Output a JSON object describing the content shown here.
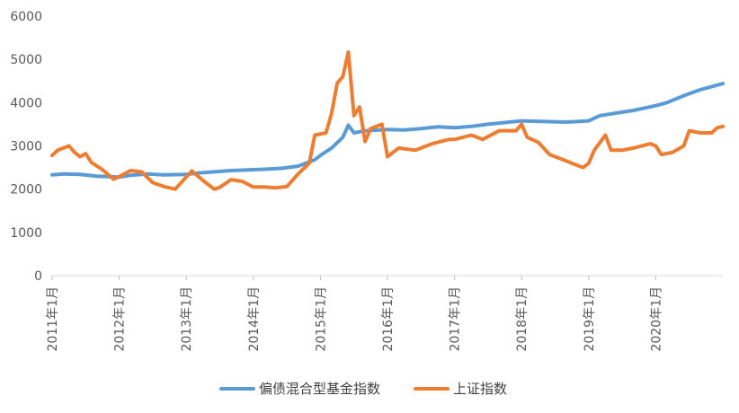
{
  "chart_data": {
    "type": "line",
    "title": "",
    "xlabel": "",
    "ylabel": "",
    "ylim": [
      0,
      6000
    ],
    "y_ticks": [
      "0",
      "1000",
      "2000",
      "3000",
      "4000",
      "5000",
      "6000"
    ],
    "x_tick_labels": [
      "2011年1月",
      "2012年1月",
      "2013年1月",
      "2014年1月",
      "2015年1月",
      "2016年1月",
      "2017年1月",
      "2018年1月",
      "2019年1月",
      "2020年1月"
    ],
    "x_domain": [
      "2011-01",
      "2021-01"
    ],
    "grid": false,
    "legend": "bottom",
    "series": [
      {
        "name": "偏债混合型基金指数",
        "color": "#5b9bd5",
        "points": [
          [
            "2011-01",
            2330
          ],
          [
            "2011-03",
            2350
          ],
          [
            "2011-06",
            2340
          ],
          [
            "2011-09",
            2300
          ],
          [
            "2012-01",
            2280
          ],
          [
            "2012-03",
            2320
          ],
          [
            "2012-06",
            2350
          ],
          [
            "2012-09",
            2330
          ],
          [
            "2013-01",
            2340
          ],
          [
            "2013-03",
            2370
          ],
          [
            "2013-06",
            2400
          ],
          [
            "2013-09",
            2430
          ],
          [
            "2014-01",
            2450
          ],
          [
            "2014-03",
            2460
          ],
          [
            "2014-06",
            2480
          ],
          [
            "2014-09",
            2530
          ],
          [
            "2014-12",
            2680
          ],
          [
            "2015-01",
            2780
          ],
          [
            "2015-03",
            2950
          ],
          [
            "2015-05",
            3200
          ],
          [
            "2015-06",
            3480
          ],
          [
            "2015-07",
            3300
          ],
          [
            "2015-09",
            3350
          ],
          [
            "2016-01",
            3380
          ],
          [
            "2016-04",
            3370
          ],
          [
            "2016-07",
            3400
          ],
          [
            "2016-10",
            3440
          ],
          [
            "2017-01",
            3420
          ],
          [
            "2017-04",
            3450
          ],
          [
            "2017-07",
            3500
          ],
          [
            "2017-10",
            3540
          ],
          [
            "2018-01",
            3580
          ],
          [
            "2018-03",
            3570
          ],
          [
            "2018-06",
            3560
          ],
          [
            "2018-09",
            3550
          ],
          [
            "2019-01",
            3580
          ],
          [
            "2019-03",
            3700
          ],
          [
            "2019-06",
            3760
          ],
          [
            "2019-09",
            3820
          ],
          [
            "2020-01",
            3930
          ],
          [
            "2020-03",
            4000
          ],
          [
            "2020-06",
            4160
          ],
          [
            "2020-09",
            4300
          ],
          [
            "2021-01",
            4440
          ]
        ]
      },
      {
        "name": "上证指数",
        "color": "#ed7d31",
        "points": [
          [
            "2011-01",
            2780
          ],
          [
            "2011-02",
            2900
          ],
          [
            "2011-04",
            3000
          ],
          [
            "2011-05",
            2850
          ],
          [
            "2011-06",
            2750
          ],
          [
            "2011-07",
            2820
          ],
          [
            "2011-08",
            2620
          ],
          [
            "2011-10",
            2450
          ],
          [
            "2011-12",
            2230
          ],
          [
            "2012-01",
            2290
          ],
          [
            "2012-03",
            2430
          ],
          [
            "2012-05",
            2400
          ],
          [
            "2012-07",
            2150
          ],
          [
            "2012-09",
            2060
          ],
          [
            "2012-11",
            2000
          ],
          [
            "2013-01",
            2280
          ],
          [
            "2013-02",
            2420
          ],
          [
            "2013-04",
            2200
          ],
          [
            "2013-06",
            2000
          ],
          [
            "2013-07",
            2040
          ],
          [
            "2013-09",
            2220
          ],
          [
            "2013-11",
            2180
          ],
          [
            "2014-01",
            2050
          ],
          [
            "2014-03",
            2050
          ],
          [
            "2014-05",
            2030
          ],
          [
            "2014-07",
            2060
          ],
          [
            "2014-09",
            2350
          ],
          [
            "2014-11",
            2600
          ],
          [
            "2014-12",
            3250
          ],
          [
            "2015-02",
            3300
          ],
          [
            "2015-03",
            3750
          ],
          [
            "2015-04",
            4450
          ],
          [
            "2015-05",
            4600
          ],
          [
            "2015-06",
            5170
          ],
          [
            "2015-07",
            3700
          ],
          [
            "2015-08",
            3900
          ],
          [
            "2015-09",
            3100
          ],
          [
            "2015-10",
            3400
          ],
          [
            "2015-12",
            3500
          ],
          [
            "2016-01",
            2750
          ],
          [
            "2016-03",
            2950
          ],
          [
            "2016-06",
            2900
          ],
          [
            "2016-09",
            3050
          ],
          [
            "2016-12",
            3150
          ],
          [
            "2017-01",
            3150
          ],
          [
            "2017-04",
            3250
          ],
          [
            "2017-06",
            3150
          ],
          [
            "2017-09",
            3350
          ],
          [
            "2017-12",
            3350
          ],
          [
            "2018-01",
            3500
          ],
          [
            "2018-02",
            3200
          ],
          [
            "2018-04",
            3080
          ],
          [
            "2018-06",
            2800
          ],
          [
            "2018-08",
            2700
          ],
          [
            "2018-10",
            2600
          ],
          [
            "2018-12",
            2500
          ],
          [
            "2019-01",
            2600
          ],
          [
            "2019-02",
            2900
          ],
          [
            "2019-04",
            3250
          ],
          [
            "2019-05",
            2900
          ],
          [
            "2019-07",
            2900
          ],
          [
            "2019-09",
            2950
          ],
          [
            "2019-12",
            3050
          ],
          [
            "2020-01",
            3000
          ],
          [
            "2020-02",
            2800
          ],
          [
            "2020-04",
            2850
          ],
          [
            "2020-06",
            3000
          ],
          [
            "2020-07",
            3350
          ],
          [
            "2020-09",
            3300
          ],
          [
            "2020-11",
            3300
          ],
          [
            "2020-12",
            3420
          ],
          [
            "2021-01",
            3450
          ]
        ]
      }
    ]
  }
}
